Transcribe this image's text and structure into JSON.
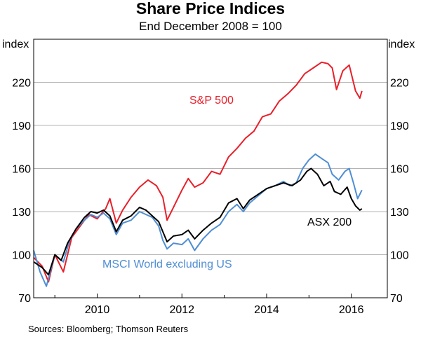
{
  "chart_data": {
    "type": "line",
    "title": "Share Price Indices",
    "subtitle": "End December 2008 = 100",
    "ylabel_left": "index",
    "ylabel_right": "index",
    "ylim": [
      70,
      250
    ],
    "yticks": [
      70,
      100,
      130,
      160,
      190,
      220
    ],
    "xlim": [
      2008.5,
      2016.85
    ],
    "xticks": [
      2010,
      2012,
      2014,
      2016
    ],
    "grid": true,
    "source": "Sources:  Bloomberg; Thomson Reuters",
    "series": [
      {
        "name": "S&P 500",
        "label": "S&P 500",
        "color": "#e8202a",
        "points": [
          [
            2008.5,
            98
          ],
          [
            2008.7,
            92
          ],
          [
            2008.85,
            81
          ],
          [
            2009.0,
            100
          ],
          [
            2009.2,
            88
          ],
          [
            2009.4,
            112
          ],
          [
            2009.6,
            120
          ],
          [
            2009.8,
            128
          ],
          [
            2010.0,
            125
          ],
          [
            2010.2,
            132
          ],
          [
            2010.3,
            139
          ],
          [
            2010.45,
            122
          ],
          [
            2010.6,
            131
          ],
          [
            2010.8,
            140
          ],
          [
            2011.0,
            147
          ],
          [
            2011.2,
            152
          ],
          [
            2011.4,
            148
          ],
          [
            2011.55,
            140
          ],
          [
            2011.65,
            124
          ],
          [
            2011.8,
            133
          ],
          [
            2012.0,
            145
          ],
          [
            2012.15,
            153
          ],
          [
            2012.3,
            147
          ],
          [
            2012.5,
            150
          ],
          [
            2012.7,
            158
          ],
          [
            2012.9,
            156
          ],
          [
            2013.1,
            168
          ],
          [
            2013.3,
            174
          ],
          [
            2013.5,
            181
          ],
          [
            2013.7,
            186
          ],
          [
            2013.9,
            196
          ],
          [
            2014.1,
            198
          ],
          [
            2014.3,
            207
          ],
          [
            2014.5,
            212
          ],
          [
            2014.7,
            218
          ],
          [
            2014.9,
            226
          ],
          [
            2015.1,
            230
          ],
          [
            2015.3,
            234
          ],
          [
            2015.45,
            233
          ],
          [
            2015.55,
            230
          ],
          [
            2015.65,
            215
          ],
          [
            2015.8,
            228
          ],
          [
            2015.95,
            232
          ],
          [
            2016.05,
            220
          ],
          [
            2016.1,
            214
          ],
          [
            2016.2,
            209
          ],
          [
            2016.25,
            214
          ]
        ]
      },
      {
        "name": "ASX 200",
        "label": "ASX 200",
        "color": "#000000",
        "points": [
          [
            2008.5,
            95
          ],
          [
            2008.7,
            91
          ],
          [
            2008.85,
            86
          ],
          [
            2009.0,
            100
          ],
          [
            2009.15,
            96
          ],
          [
            2009.3,
            108
          ],
          [
            2009.5,
            118
          ],
          [
            2009.7,
            126
          ],
          [
            2009.85,
            130
          ],
          [
            2010.0,
            129
          ],
          [
            2010.15,
            131
          ],
          [
            2010.3,
            127
          ],
          [
            2010.45,
            116
          ],
          [
            2010.6,
            124
          ],
          [
            2010.8,
            127
          ],
          [
            2011.0,
            133
          ],
          [
            2011.15,
            131
          ],
          [
            2011.3,
            127
          ],
          [
            2011.45,
            123
          ],
          [
            2011.55,
            116
          ],
          [
            2011.65,
            109
          ],
          [
            2011.8,
            113
          ],
          [
            2012.0,
            114
          ],
          [
            2012.15,
            117
          ],
          [
            2012.3,
            111
          ],
          [
            2012.5,
            117
          ],
          [
            2012.7,
            122
          ],
          [
            2012.9,
            126
          ],
          [
            2013.1,
            136
          ],
          [
            2013.3,
            139
          ],
          [
            2013.45,
            132
          ],
          [
            2013.6,
            138
          ],
          [
            2013.8,
            142
          ],
          [
            2014.0,
            146
          ],
          [
            2014.2,
            148
          ],
          [
            2014.4,
            150
          ],
          [
            2014.6,
            148
          ],
          [
            2014.8,
            152
          ],
          [
            2014.95,
            158
          ],
          [
            2015.05,
            160
          ],
          [
            2015.2,
            156
          ],
          [
            2015.35,
            148
          ],
          [
            2015.5,
            151
          ],
          [
            2015.6,
            144
          ],
          [
            2015.75,
            142
          ],
          [
            2015.9,
            147
          ],
          [
            2016.0,
            139
          ],
          [
            2016.1,
            134
          ],
          [
            2016.2,
            131
          ],
          [
            2016.25,
            132
          ]
        ]
      },
      {
        "name": "MSCI World excluding US",
        "label": "MSCI World excluding US",
        "color": "#4f8ed3",
        "points": [
          [
            2008.5,
            103
          ],
          [
            2008.65,
            88
          ],
          [
            2008.8,
            78
          ],
          [
            2009.0,
            100
          ],
          [
            2009.2,
            95
          ],
          [
            2009.35,
            110
          ],
          [
            2009.5,
            118
          ],
          [
            2009.7,
            124
          ],
          [
            2009.85,
            128
          ],
          [
            2010.0,
            126
          ],
          [
            2010.15,
            129
          ],
          [
            2010.3,
            125
          ],
          [
            2010.45,
            114
          ],
          [
            2010.6,
            122
          ],
          [
            2010.8,
            124
          ],
          [
            2011.0,
            130
          ],
          [
            2011.15,
            128
          ],
          [
            2011.3,
            126
          ],
          [
            2011.45,
            120
          ],
          [
            2011.55,
            110
          ],
          [
            2011.65,
            104
          ],
          [
            2011.8,
            108
          ],
          [
            2012.0,
            107
          ],
          [
            2012.15,
            111
          ],
          [
            2012.3,
            103
          ],
          [
            2012.5,
            111
          ],
          [
            2012.7,
            117
          ],
          [
            2012.9,
            121
          ],
          [
            2013.1,
            130
          ],
          [
            2013.3,
            135
          ],
          [
            2013.45,
            130
          ],
          [
            2013.6,
            136
          ],
          [
            2013.8,
            141
          ],
          [
            2014.0,
            146
          ],
          [
            2014.2,
            148
          ],
          [
            2014.4,
            151
          ],
          [
            2014.55,
            148
          ],
          [
            2014.7,
            150
          ],
          [
            2014.85,
            160
          ],
          [
            2015.0,
            166
          ],
          [
            2015.15,
            170
          ],
          [
            2015.3,
            167
          ],
          [
            2015.45,
            164
          ],
          [
            2015.55,
            156
          ],
          [
            2015.7,
            152
          ],
          [
            2015.85,
            158
          ],
          [
            2015.95,
            160
          ],
          [
            2016.05,
            150
          ],
          [
            2016.15,
            139
          ],
          [
            2016.25,
            145
          ]
        ]
      }
    ]
  }
}
